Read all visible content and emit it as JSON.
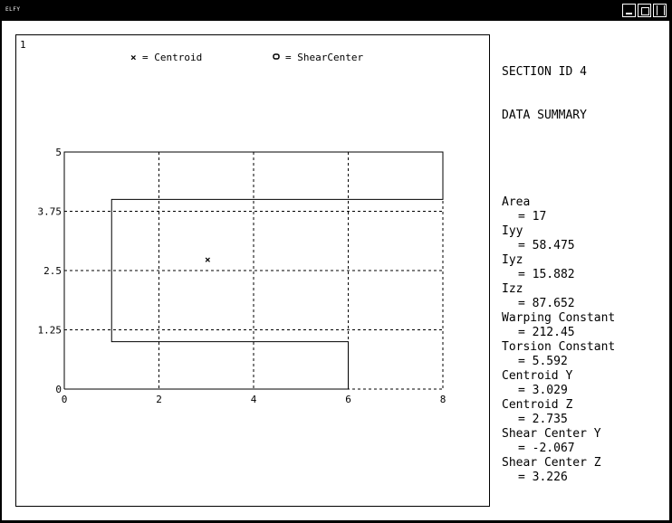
{
  "window": {
    "title": "ELFY"
  },
  "plot": {
    "number": "1",
    "legend": [
      {
        "symbol": "cross-icon",
        "label": "= Centroid"
      },
      {
        "symbol": "circle-icon",
        "label": "= ShearCenter"
      }
    ]
  },
  "chart_data": {
    "type": "scatter",
    "x_ticks": [
      "0",
      "2",
      "4",
      "6",
      "8"
    ],
    "y_ticks": [
      "0",
      "1.25",
      "2.5",
      "3.75",
      "5"
    ],
    "xlim": [
      0,
      8
    ],
    "ylim": [
      0,
      5
    ],
    "grid": true,
    "outline": [
      [
        0,
        0
      ],
      [
        6,
        0
      ],
      [
        6,
        1
      ],
      [
        1,
        1
      ],
      [
        1,
        4
      ],
      [
        8,
        4
      ],
      [
        8,
        5
      ],
      [
        0,
        5
      ],
      [
        0,
        0
      ]
    ],
    "centroid": [
      3.029,
      2.735
    ]
  },
  "summary": {
    "heading1": "SECTION ID 4",
    "heading2": "DATA SUMMARY",
    "items": [
      {
        "label": "Area",
        "value": "= 17"
      },
      {
        "label": "Iyy",
        "value": "= 58.475"
      },
      {
        "label": "Iyz",
        "value": "= 15.882"
      },
      {
        "label": "Izz",
        "value": "= 87.652"
      },
      {
        "label": "Warping Constant",
        "value": "= 212.45"
      },
      {
        "label": "Torsion Constant",
        "value": "= 5.592"
      },
      {
        "label": "Centroid Y",
        "value": "= 3.029"
      },
      {
        "label": "Centroid Z",
        "value": "= 2.735"
      },
      {
        "label": "Shear Center Y",
        "value": "= -2.067"
      },
      {
        "label": "Shear Center Z",
        "value": "= 3.226"
      }
    ]
  }
}
